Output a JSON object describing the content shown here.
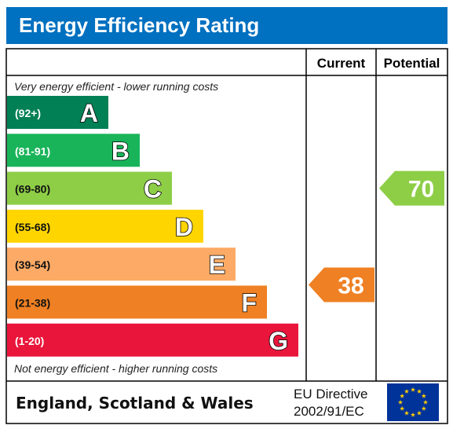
{
  "title": "Energy Efficiency Rating",
  "columns": {
    "current": "Current",
    "potential": "Potential"
  },
  "top_caption": "Very energy efficient - lower running costs",
  "bottom_caption": "Not energy efficient - higher running costs",
  "footer": {
    "region": "England, Scotland & Wales",
    "directive_line1": "EU Directive",
    "directive_line2": "2002/91/EC"
  },
  "chart_data": {
    "type": "bar",
    "bands": [
      {
        "letter": "A",
        "range": "(92+)",
        "color": "#008054"
      },
      {
        "letter": "B",
        "range": "(81-91)",
        "color": "#19b459"
      },
      {
        "letter": "C",
        "range": "(69-80)",
        "color": "#8dce46"
      },
      {
        "letter": "D",
        "range": "(55-68)",
        "color": "#ffd500"
      },
      {
        "letter": "E",
        "range": "(39-54)",
        "color": "#fcaa65"
      },
      {
        "letter": "F",
        "range": "(21-38)",
        "color": "#ef8023"
      },
      {
        "letter": "G",
        "range": "(1-20)",
        "color": "#e9153b"
      }
    ],
    "current": {
      "value": 38,
      "band": "F",
      "color": "#ef8023"
    },
    "potential": {
      "value": 70,
      "band": "C",
      "color": "#8dce46"
    }
  },
  "colors": {
    "title_bar": "#0070c0",
    "eu_flag": "#003399",
    "eu_stars": "#ffcc00"
  }
}
